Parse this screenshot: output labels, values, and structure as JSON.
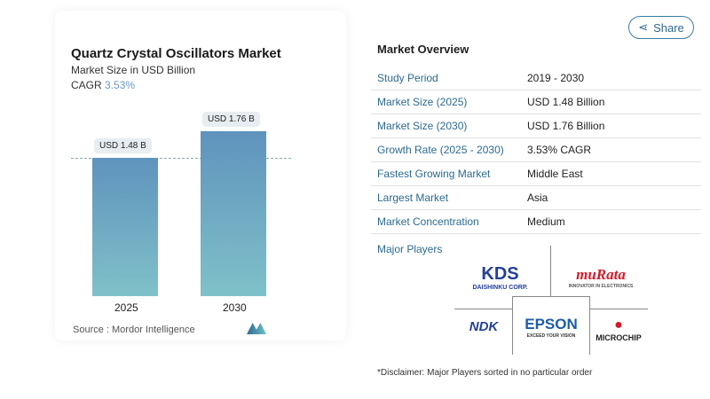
{
  "header": {
    "share_label": "Share"
  },
  "chart_data": {
    "type": "bar",
    "title": "Quartz Crystal Oscillators Market",
    "subtitle": "Market Size in USD Billion",
    "cagr_label": "CAGR",
    "cagr_value": "3.53%",
    "categories": [
      "2025",
      "2030"
    ],
    "values": [
      1.48,
      1.76
    ],
    "data_labels": [
      "USD 1.48 B",
      "USD 1.76 B"
    ],
    "source": "Source : Mordor Intelligence",
    "colors": {
      "bar_top": "#5f93bd",
      "bar_bottom": "#7fc1c9"
    }
  },
  "overview": {
    "title": "Market Overview",
    "rows": [
      {
        "k": "Study Period",
        "v": "2019 - 2030"
      },
      {
        "k": "Market Size (2025)",
        "v": "USD 1.48 Billion"
      },
      {
        "k": "Market Size (2030)",
        "v": "USD 1.76 Billion"
      },
      {
        "k": "Growth Rate (2025 - 2030)",
        "v": "3.53% CAGR"
      },
      {
        "k": "Fastest Growing Market",
        "v": "Middle East"
      },
      {
        "k": "Largest Market",
        "v": "Asia"
      },
      {
        "k": "Market Concentration",
        "v": "Medium"
      }
    ]
  },
  "players": {
    "title": "Major Players",
    "logos": [
      {
        "name": "KDS",
        "sub": "DAISHINKU CORP."
      },
      {
        "name": "muRata",
        "sub": "INNOVATOR IN ELECTRONICS"
      },
      {
        "name": "NDK",
        "sub": ""
      },
      {
        "name": "EPSON",
        "sub": "EXCEED YOUR VISION"
      },
      {
        "name": "MICROCHIP",
        "sub": ""
      }
    ]
  },
  "disclaimer": "*Disclaimer: Major Players sorted in no particular order"
}
